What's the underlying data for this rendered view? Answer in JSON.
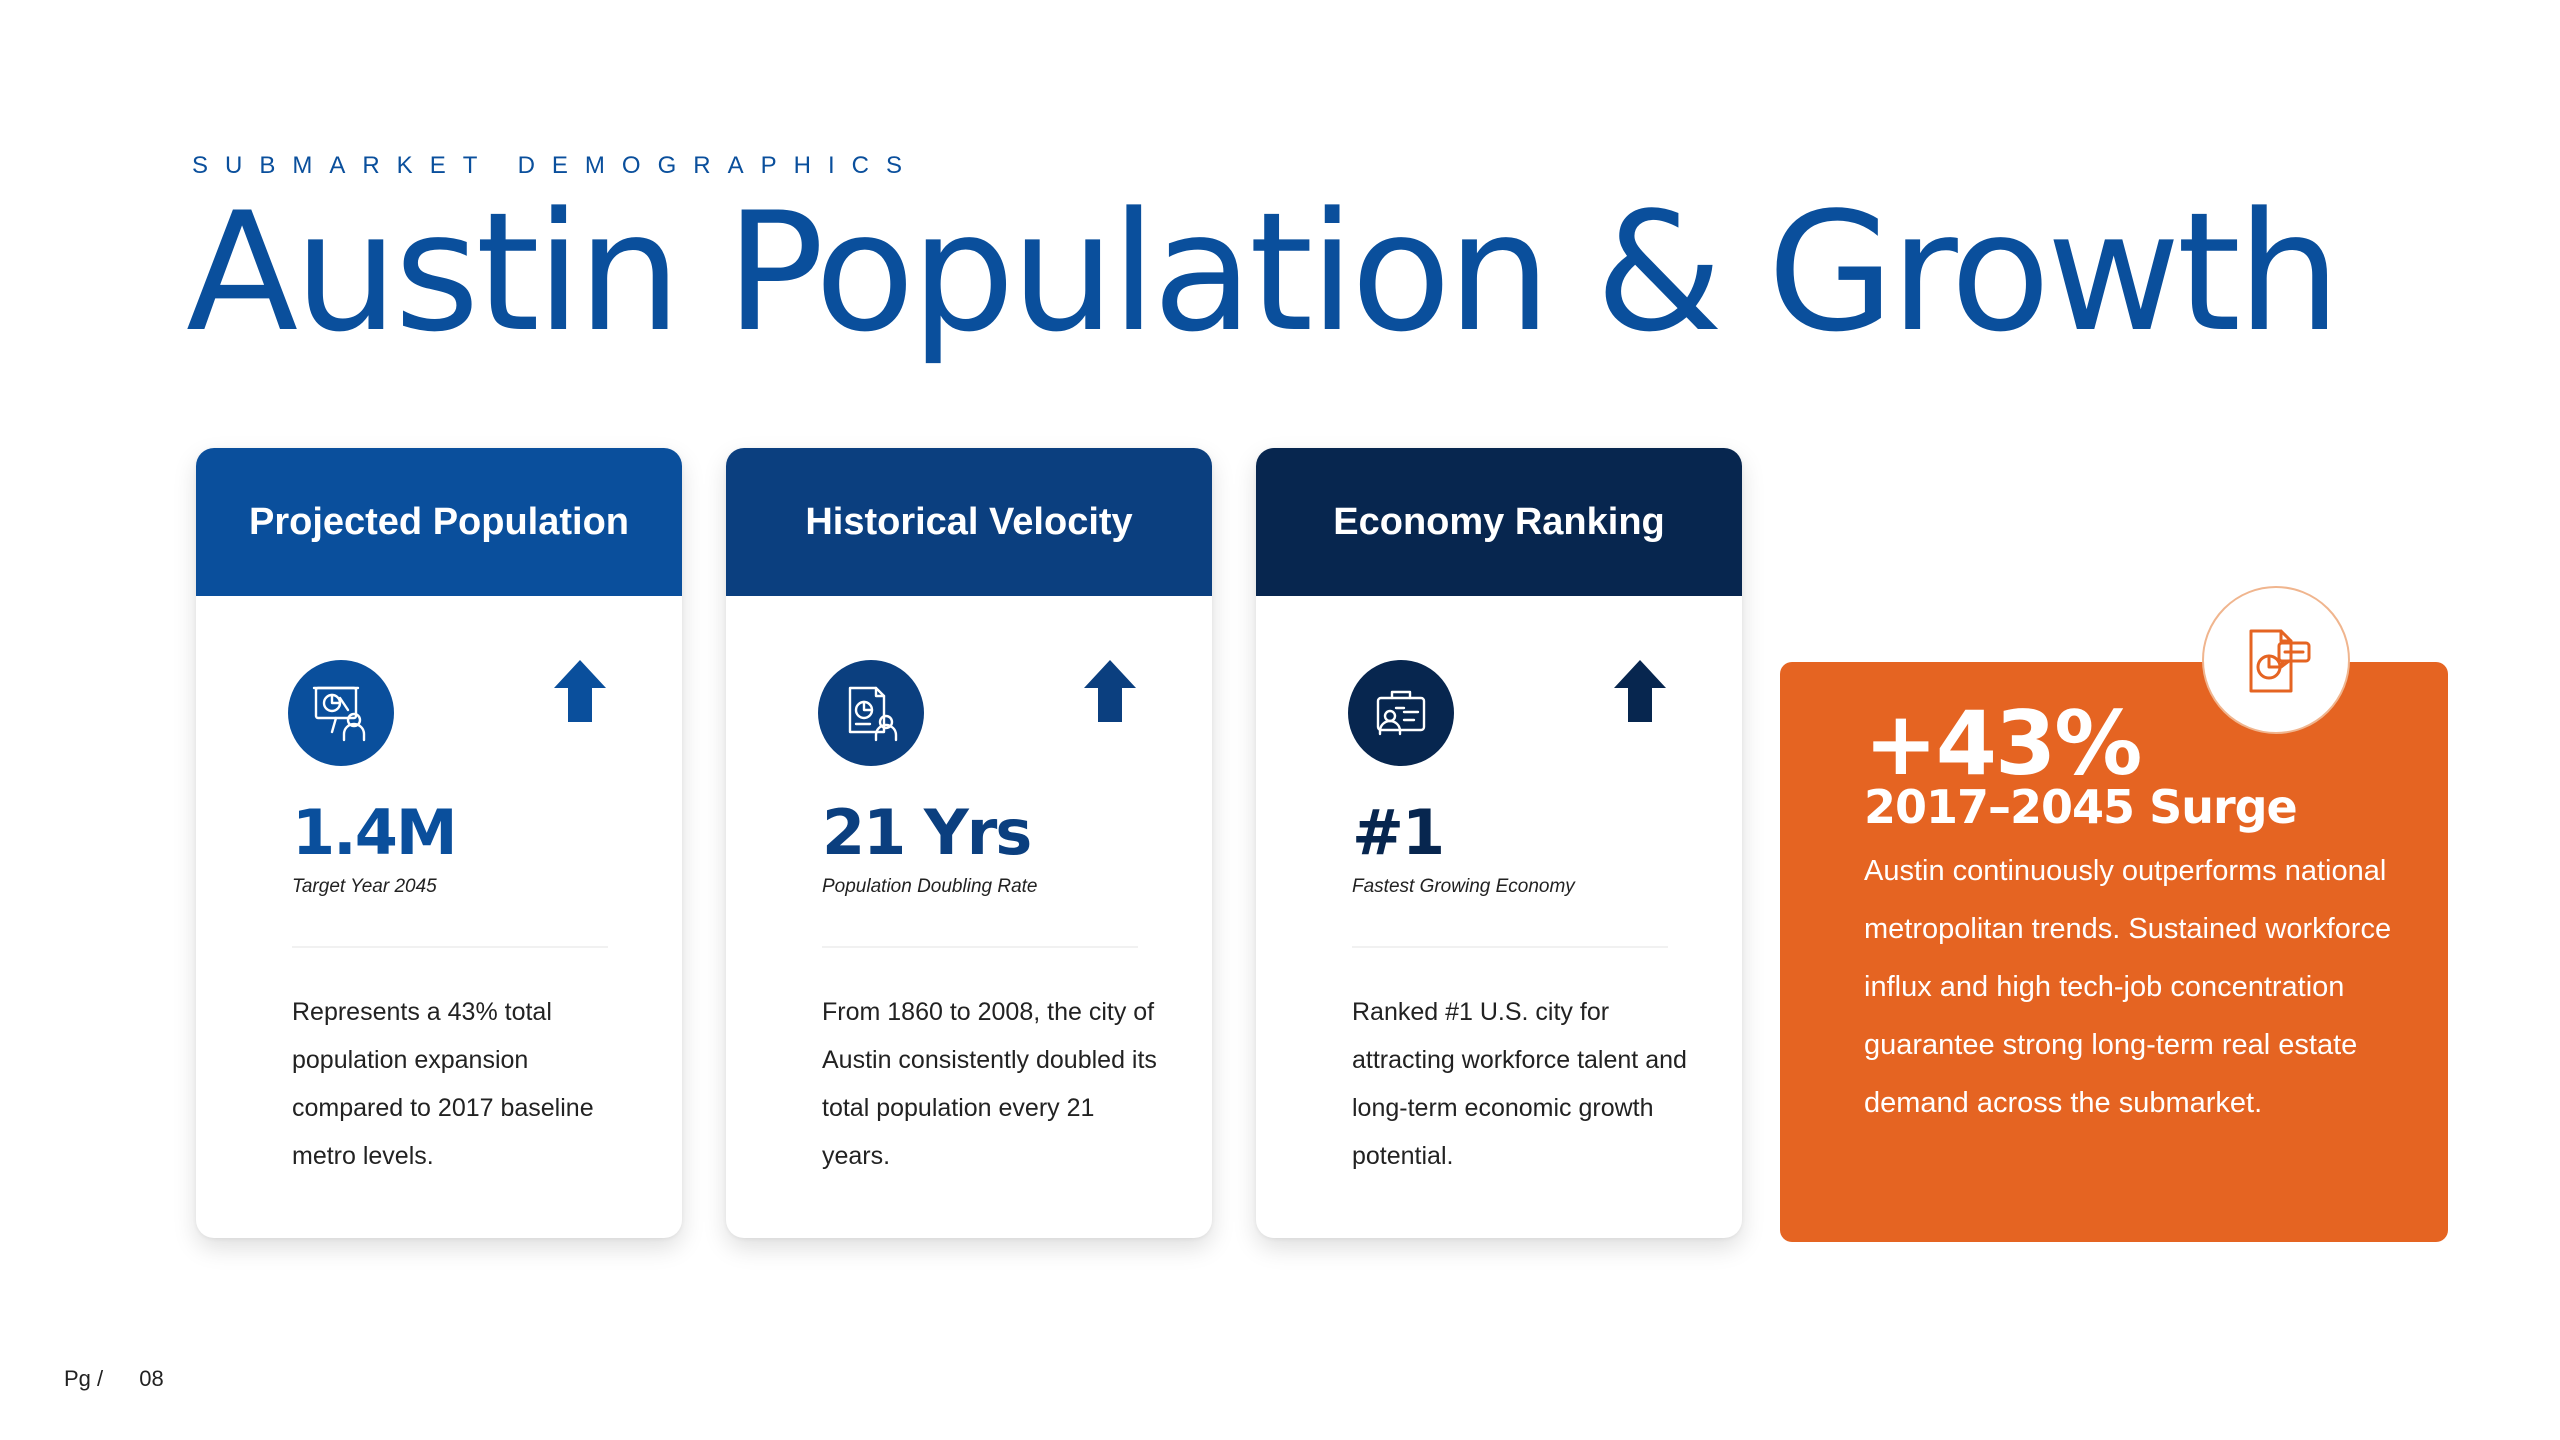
{
  "header": {
    "eyebrow": "SUBMARKET DEMOGRAPHICS",
    "title": "Austin Population & Growth"
  },
  "colors": {
    "primary_blue": "#0a4f9c",
    "mid_blue": "#0b3f7f",
    "navy": "#07264f",
    "orange": "#e56422"
  },
  "cards": [
    {
      "header": "Projected Population",
      "icon": "presentation-chart-icon",
      "trend": "arrow-up-icon",
      "stat": "1.4M",
      "stat_label": "Target Year 2045",
      "body": "Represents a 43% total population expansion compared to 2017 baseline metro levels."
    },
    {
      "header": "Historical Velocity",
      "icon": "report-analyst-icon",
      "trend": "arrow-up-icon",
      "stat": "21 Yrs",
      "stat_label": "Population Doubling Rate",
      "body": "From 1860 to 2008, the city of Austin consistently doubled its total population every 21 years."
    },
    {
      "header": "Economy Ranking",
      "icon": "briefcase-team-icon",
      "trend": "arrow-up-icon",
      "stat": "#1",
      "stat_label": "Fastest Growing Economy",
      "body": "Ranked #1 U.S. city for attracting workforce talent and long-term economic growth potential."
    }
  ],
  "highlight": {
    "icon": "document-chart-icon",
    "big": "+43%",
    "sub": "2017–2045 Surge",
    "body": "Austin continuously outperforms national metropolitan trends. Sustained workforce influx and high tech-job concentration guarantee strong long-term real estate demand across the submarket."
  },
  "footer": {
    "pg_label": "Pg /",
    "pg_number": "08"
  }
}
